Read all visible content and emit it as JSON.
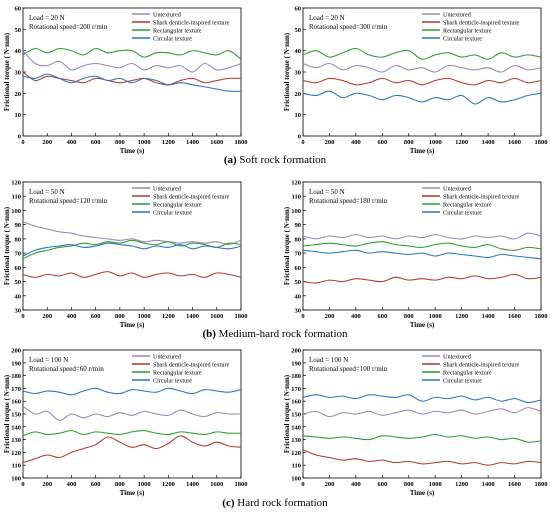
{
  "legend_entries": [
    "Untextured",
    "Shark denticle-inspired texture",
    "Rectangular texture",
    "Circular texture"
  ],
  "colors": {
    "untextured": "#9b82c6",
    "shark": "#b0392c",
    "rectangular": "#2f9a2f",
    "circular": "#2a73c0"
  },
  "captions": [
    {
      "letter": "(a)",
      "text": " Soft rock formation"
    },
    {
      "letter": "(b)",
      "text": " Medium-hard rock formation"
    },
    {
      "letter": "(c)",
      "text": " Hard rock formation"
    }
  ],
  "chart_data": [
    {
      "type": "line",
      "panel": "a-left",
      "annotation": [
        "Load = 20 N",
        "Rotational speed=200 r/min"
      ],
      "xlabel": "Time (s)",
      "ylabel": "Frictional torque ( N·mm)",
      "xlim": [
        0,
        1800
      ],
      "ylim": [
        0,
        60
      ],
      "xticks": [
        0,
        200,
        400,
        600,
        800,
        1000,
        1200,
        1400,
        1600,
        1800
      ],
      "yticks": [
        0,
        10,
        20,
        30,
        40,
        50,
        60
      ],
      "x": [
        0,
        100,
        200,
        300,
        400,
        500,
        600,
        700,
        800,
        900,
        1000,
        1100,
        1200,
        1300,
        1400,
        1500,
        1600,
        1700,
        1800
      ],
      "series": [
        {
          "name": "Untextured",
          "values": [
            40,
            34,
            33,
            35,
            31,
            33,
            34,
            33,
            32,
            34,
            31,
            33,
            32,
            33,
            30,
            34,
            31,
            32,
            34
          ]
        },
        {
          "name": "Shark denticle-inspired texture",
          "values": [
            30,
            26,
            28,
            27,
            26,
            25,
            27,
            26,
            25,
            26,
            27,
            25,
            24,
            26,
            27,
            25,
            26,
            27,
            27
          ]
        },
        {
          "name": "Rectangular texture",
          "values": [
            38,
            41,
            39,
            41,
            40,
            38,
            41,
            39,
            40,
            40,
            37,
            39,
            39,
            38,
            40,
            39,
            38,
            40,
            36
          ]
        },
        {
          "name": "Circular texture",
          "values": [
            28,
            27,
            29,
            27,
            25,
            27,
            28,
            26,
            27,
            25,
            27,
            26,
            24,
            25,
            24,
            23,
            22,
            21,
            21
          ]
        }
      ]
    },
    {
      "type": "line",
      "panel": "a-right",
      "annotation": [
        "Load = 20 N",
        "Rotational speed=300 r/min"
      ],
      "xlabel": "Time (s)",
      "ylabel": "Frictional torque ( N·mm)",
      "xlim": [
        0,
        1800
      ],
      "ylim": [
        0,
        60
      ],
      "xticks": [
        0,
        200,
        400,
        600,
        800,
        1000,
        1200,
        1400,
        1600,
        1800
      ],
      "yticks": [
        0,
        10,
        20,
        30,
        40,
        50,
        60
      ],
      "x": [
        0,
        100,
        200,
        300,
        400,
        500,
        600,
        700,
        800,
        900,
        1000,
        1100,
        1200,
        1300,
        1400,
        1500,
        1600,
        1700,
        1800
      ],
      "series": [
        {
          "name": "Untextured",
          "values": [
            34,
            32,
            34,
            31,
            33,
            32,
            30,
            33,
            31,
            32,
            30,
            33,
            32,
            31,
            32,
            30,
            33,
            31,
            32
          ]
        },
        {
          "name": "Shark denticle-inspired texture",
          "values": [
            26,
            25,
            27,
            26,
            24,
            25,
            27,
            25,
            26,
            24,
            26,
            27,
            25,
            24,
            26,
            25,
            27,
            25,
            26
          ]
        },
        {
          "name": "Rectangular texture",
          "values": [
            38,
            40,
            37,
            39,
            41,
            38,
            37,
            39,
            40,
            36,
            38,
            39,
            37,
            38,
            36,
            39,
            37,
            38,
            37
          ]
        },
        {
          "name": "Circular texture",
          "values": [
            20,
            19,
            21,
            18,
            20,
            19,
            17,
            19,
            18,
            16,
            18,
            17,
            19,
            15,
            18,
            16,
            17,
            19,
            20
          ]
        }
      ]
    },
    {
      "type": "line",
      "panel": "b-left",
      "annotation": [
        "Load = 50 N",
        "Rotational speed=120 r/min"
      ],
      "xlabel": "Time (s)",
      "ylabel": "Frictional torque ( N·mm)",
      "xlim": [
        0,
        1800
      ],
      "ylim": [
        30,
        120
      ],
      "xticks": [
        0,
        200,
        400,
        600,
        800,
        1000,
        1200,
        1400,
        1600,
        1800
      ],
      "yticks": [
        30,
        40,
        50,
        60,
        70,
        80,
        90,
        100,
        110,
        120
      ],
      "x": [
        0,
        100,
        200,
        300,
        400,
        500,
        600,
        700,
        800,
        900,
        1000,
        1100,
        1200,
        1300,
        1400,
        1500,
        1600,
        1700,
        1800
      ],
      "series": [
        {
          "name": "Untextured",
          "values": [
            92,
            89,
            87,
            85,
            84,
            82,
            81,
            80,
            79,
            80,
            78,
            79,
            78,
            77,
            78,
            77,
            78,
            76,
            79
          ]
        },
        {
          "name": "Shark denticle-inspired texture",
          "values": [
            55,
            53,
            55,
            54,
            56,
            53,
            55,
            57,
            54,
            56,
            53,
            55,
            56,
            54,
            55,
            53,
            56,
            55,
            53
          ]
        },
        {
          "name": "Rectangular texture",
          "values": [
            66,
            70,
            72,
            74,
            75,
            77,
            76,
            78,
            77,
            79,
            77,
            76,
            78,
            75,
            77,
            76,
            74,
            77,
            76
          ]
        },
        {
          "name": "Circular texture",
          "values": [
            68,
            72,
            74,
            75,
            76,
            74,
            75,
            77,
            76,
            75,
            73,
            75,
            74,
            76,
            73,
            75,
            74,
            73,
            75
          ]
        }
      ]
    },
    {
      "type": "line",
      "panel": "b-right",
      "annotation": [
        "Load = 50 N",
        "Rotational speed=180 r/min"
      ],
      "xlabel": "Time (s)",
      "ylabel": "Frictional torque ( N·mm)",
      "xlim": [
        0,
        1800
      ],
      "ylim": [
        30,
        120
      ],
      "xticks": [
        0,
        200,
        400,
        600,
        800,
        1000,
        1200,
        1400,
        1600,
        1800
      ],
      "yticks": [
        30,
        40,
        50,
        60,
        70,
        80,
        90,
        100,
        110,
        120
      ],
      "x": [
        0,
        100,
        200,
        300,
        400,
        500,
        600,
        700,
        800,
        900,
        1000,
        1100,
        1200,
        1300,
        1400,
        1500,
        1600,
        1700,
        1800
      ],
      "series": [
        {
          "name": "Untextured",
          "values": [
            82,
            80,
            82,
            81,
            83,
            81,
            82,
            80,
            82,
            81,
            83,
            81,
            80,
            82,
            81,
            82,
            80,
            84,
            82
          ]
        },
        {
          "name": "Shark denticle-inspired texture",
          "values": [
            50,
            49,
            51,
            50,
            52,
            51,
            50,
            53,
            51,
            52,
            51,
            53,
            52,
            54,
            52,
            53,
            55,
            52,
            53
          ]
        },
        {
          "name": "Rectangular texture",
          "values": [
            75,
            76,
            77,
            76,
            75,
            77,
            78,
            76,
            75,
            74,
            76,
            77,
            75,
            74,
            76,
            73,
            72,
            74,
            73
          ]
        },
        {
          "name": "Circular texture",
          "values": [
            72,
            71,
            70,
            71,
            72,
            70,
            71,
            70,
            69,
            70,
            68,
            70,
            69,
            68,
            67,
            69,
            68,
            67,
            66
          ]
        }
      ]
    },
    {
      "type": "line",
      "panel": "c-left",
      "annotation": [
        "Load = 100 N",
        "Rotational speed=60 r/min"
      ],
      "xlabel": "Time (s)",
      "ylabel": "Frictional torque ( N·mm)",
      "xlim": [
        0,
        1800
      ],
      "ylim": [
        100,
        200
      ],
      "xticks": [
        0,
        200,
        400,
        600,
        800,
        1000,
        1200,
        1400,
        1600,
        1800
      ],
      "yticks": [
        100,
        110,
        120,
        130,
        140,
        150,
        160,
        170,
        180,
        190,
        200
      ],
      "x": [
        0,
        100,
        200,
        300,
        400,
        500,
        600,
        700,
        800,
        900,
        1000,
        1100,
        1200,
        1300,
        1400,
        1500,
        1600,
        1700,
        1800
      ],
      "series": [
        {
          "name": "Untextured",
          "values": [
            156,
            150,
            152,
            145,
            150,
            147,
            150,
            148,
            151,
            149,
            152,
            150,
            149,
            153,
            150,
            148,
            151,
            150,
            150
          ]
        },
        {
          "name": "Shark denticle-inspired texture",
          "values": [
            112,
            115,
            118,
            116,
            120,
            123,
            126,
            132,
            128,
            124,
            126,
            123,
            127,
            133,
            128,
            125,
            128,
            125,
            124
          ]
        },
        {
          "name": "Rectangular texture",
          "values": [
            133,
            136,
            134,
            135,
            137,
            134,
            136,
            135,
            134,
            136,
            137,
            135,
            134,
            136,
            135,
            134,
            136,
            135,
            135
          ]
        },
        {
          "name": "Circular texture",
          "values": [
            168,
            166,
            168,
            167,
            165,
            168,
            170,
            167,
            166,
            169,
            168,
            167,
            170,
            168,
            166,
            169,
            168,
            167,
            169
          ]
        }
      ]
    },
    {
      "type": "line",
      "panel": "c-right",
      "annotation": [
        "Load = 100 N",
        "Rotational speed=100 r/min"
      ],
      "xlabel": "Time (s)",
      "ylabel": "Frictional torque ( N·mm)",
      "xlim": [
        0,
        1800
      ],
      "ylim": [
        100,
        200
      ],
      "xticks": [
        0,
        200,
        400,
        600,
        800,
        1000,
        1200,
        1400,
        1600,
        1800
      ],
      "yticks": [
        100,
        110,
        120,
        130,
        140,
        150,
        160,
        170,
        180,
        190,
        200
      ],
      "x": [
        0,
        100,
        200,
        300,
        400,
        500,
        600,
        700,
        800,
        900,
        1000,
        1100,
        1200,
        1300,
        1400,
        1500,
        1600,
        1700,
        1800
      ],
      "series": [
        {
          "name": "Untextured",
          "values": [
            150,
            152,
            148,
            151,
            150,
            152,
            149,
            151,
            153,
            150,
            152,
            151,
            153,
            150,
            152,
            154,
            151,
            155,
            152
          ]
        },
        {
          "name": "Shark denticle-inspired texture",
          "values": [
            122,
            118,
            116,
            114,
            115,
            113,
            114,
            112,
            113,
            111,
            112,
            113,
            111,
            112,
            110,
            112,
            111,
            113,
            112
          ]
        },
        {
          "name": "Rectangular texture",
          "values": [
            133,
            132,
            131,
            132,
            131,
            130,
            133,
            132,
            131,
            132,
            134,
            132,
            133,
            131,
            132,
            130,
            131,
            128,
            129
          ]
        },
        {
          "name": "Circular texture",
          "values": [
            163,
            165,
            163,
            164,
            162,
            165,
            164,
            163,
            165,
            160,
            163,
            162,
            164,
            161,
            163,
            160,
            162,
            159,
            161
          ]
        }
      ]
    }
  ]
}
